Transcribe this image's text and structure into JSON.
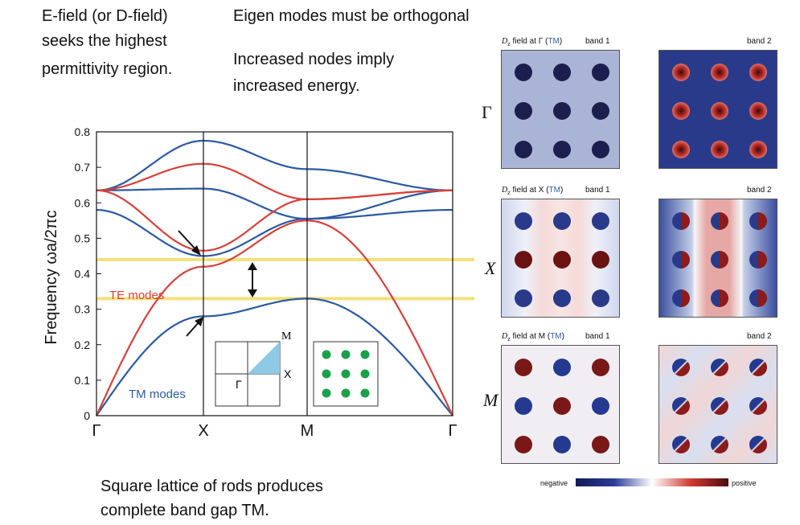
{
  "notes": {
    "efield_line1": "E-field (or D-field)",
    "efield_line2": "seeks the highest",
    "efield_line3": "permittivity region.",
    "eigen": "Eigen modes must be orthogonal",
    "nodes_line1": "Increased nodes imply",
    "nodes_line2": "increased energy.",
    "lattice_line1": "Square lattice of rods produces",
    "lattice_line2": "complete band gap TM."
  },
  "chart": {
    "ylabel": "Frequency  ωa/2πc",
    "y_ticks": [
      "0",
      "0.1",
      "0.2",
      "0.3",
      "0.4",
      "0.5",
      "0.6",
      "0.7",
      "0.8"
    ],
    "x_ticks": [
      "Γ",
      "X",
      "M",
      "Γ"
    ],
    "te_label": "TE modes",
    "tm_label": "TM modes",
    "inset_labels": {
      "m": "M",
      "x": "X",
      "gamma": "Γ"
    },
    "colors": {
      "te": "#d6403a",
      "tm": "#2b5aa0",
      "gap": "#f3e07a",
      "rods": "#1aa04a",
      "ibz": "#8ec9e6"
    }
  },
  "chart_data": {
    "type": "line",
    "x": [
      "Γ",
      "X",
      "M",
      "Γ"
    ],
    "ylabel": "Frequency  ωa/2πc",
    "ylim": [
      0,
      0.8
    ],
    "band_gap": [
      0.33,
      0.44
    ],
    "series": [
      {
        "name": "TM modes",
        "band": 1,
        "values": [
          0,
          0.28,
          0.33,
          0
        ]
      },
      {
        "name": "TM modes",
        "band": 2,
        "values": [
          0.58,
          0.45,
          0.555,
          0.58
        ]
      },
      {
        "name": "TM modes",
        "band": 3,
        "values": [
          0.635,
          0.64,
          0.555,
          0.635
        ]
      },
      {
        "name": "TM modes",
        "band": 4,
        "values": [
          0.635,
          0.775,
          0.695,
          0.635
        ]
      },
      {
        "name": "TE modes",
        "band": 1,
        "values": [
          0,
          0.42,
          0.55,
          0
        ]
      },
      {
        "name": "TE modes",
        "band": 2,
        "values": [
          0.635,
          0.465,
          0.61,
          0.635
        ]
      },
      {
        "name": "TE modes",
        "band": 3,
        "values": [
          0.635,
          0.71,
          0.61,
          0.635
        ]
      }
    ]
  },
  "field_panels": {
    "rows": [
      {
        "label": "Γ",
        "title_pre": "field at Γ",
        "tm": "TM",
        "band1": "band  1",
        "band2": "band  2"
      },
      {
        "label": "X",
        "title_pre": "field at X",
        "tm": "TM",
        "band1": "band  1",
        "band2": "band  2"
      },
      {
        "label": "M",
        "title_pre": "field at M",
        "tm": "TM",
        "band1": "band  1",
        "band2": "band  2"
      }
    ],
    "dz": "D",
    "dz_sub": "z",
    "colorbar": {
      "negative": "negative",
      "positive": "positive"
    }
  }
}
